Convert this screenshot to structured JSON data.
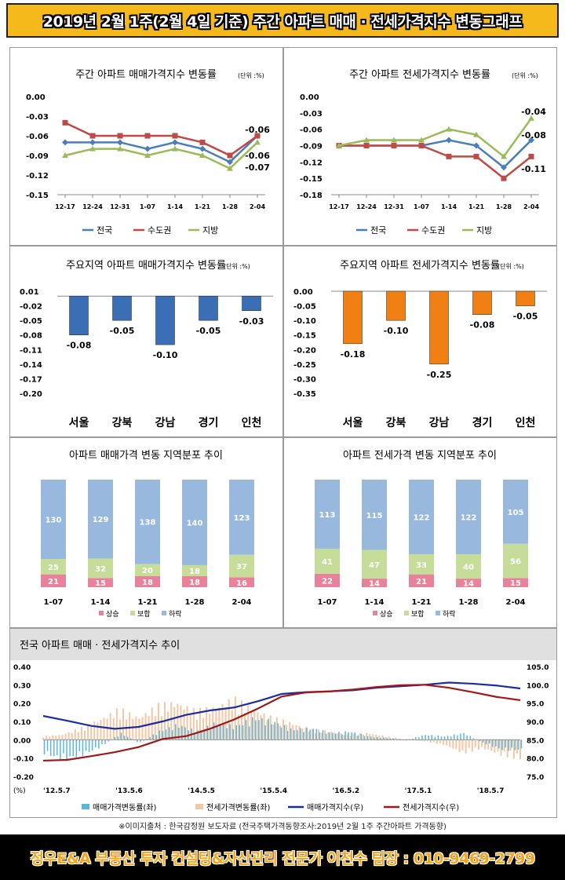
{
  "header": {
    "title": "2019년 2월 1주(2월 4일 기준) 주간 아파트 매매 · 전세가격지수 변동그래프"
  },
  "footer": {
    "source": "※이미지출처 : 한국감정원 보도자료 (전국주택가격동향조사:2019년 2월  1주 주간아파트 가격동향)",
    "banner": "정우E&A 부동산 투자 컨설팅&자산관리 전문가 이천수 팀장 : 010-9469-2799"
  },
  "colors": {
    "national": "#4a7ebb",
    "capital": "#be4b48",
    "local": "#9bbb59",
    "sale_bar": "#3a6fb5",
    "jeonse_bar": "#f07f14",
    "rise": "#e8819a",
    "flat": "#c6dd9a",
    "fall": "#98b9dd",
    "sale_index": "#1a2ea0",
    "jeonse_index": "#a01818"
  },
  "chart_data": [
    {
      "id": "weekly-sale",
      "type": "line",
      "title": "주간 아파트 매매가격지수 변동률",
      "unit": "(단위 :%)",
      "categories": [
        "12-17",
        "12-24",
        "12-31",
        "1-07",
        "1-14",
        "1-21",
        "1-28",
        "2-04"
      ],
      "ylim": [
        -0.15,
        0.0
      ],
      "yticks": [
        "0.00",
        "-0.03",
        "-0.06",
        "-0.09",
        "-0.12",
        "-0.15"
      ],
      "series": [
        {
          "name": "전국",
          "values": [
            -0.07,
            -0.07,
            -0.07,
            -0.08,
            -0.07,
            -0.08,
            -0.1,
            -0.06
          ]
        },
        {
          "name": "수도권",
          "values": [
            -0.04,
            -0.06,
            -0.06,
            -0.06,
            -0.06,
            -0.07,
            -0.09,
            -0.06
          ]
        },
        {
          "name": "지방",
          "values": [
            -0.09,
            -0.08,
            -0.08,
            -0.09,
            -0.08,
            -0.09,
            -0.11,
            -0.07
          ]
        }
      ],
      "data_labels": [
        "-0.06",
        "-0.06",
        "-0.07"
      ]
    },
    {
      "id": "weekly-jeonse",
      "type": "line",
      "title": "주간 아파트 전세가격지수 변동률",
      "unit": "(단위 :%)",
      "categories": [
        "12-17",
        "12-24",
        "12-31",
        "1-07",
        "1-14",
        "1-21",
        "1-28",
        "2-04"
      ],
      "ylim": [
        -0.18,
        0.0
      ],
      "yticks": [
        "0.00",
        "-0.03",
        "-0.06",
        "-0.09",
        "-0.12",
        "-0.15",
        "-0.18"
      ],
      "series": [
        {
          "name": "전국",
          "values": [
            -0.09,
            -0.09,
            -0.09,
            -0.09,
            -0.08,
            -0.09,
            -0.13,
            -0.08
          ]
        },
        {
          "name": "수도권",
          "values": [
            -0.09,
            -0.09,
            -0.09,
            -0.09,
            -0.11,
            -0.11,
            -0.15,
            -0.11
          ]
        },
        {
          "name": "지방",
          "values": [
            -0.09,
            -0.08,
            -0.08,
            -0.08,
            -0.06,
            -0.07,
            -0.11,
            -0.04
          ]
        }
      ],
      "data_labels": [
        "-0.04",
        "-0.08",
        "-0.11"
      ]
    },
    {
      "id": "region-sale",
      "type": "bar",
      "title": "주요지역 아파트 매매가격지수 변동률",
      "unit": "(단위 :%)",
      "categories": [
        "서울",
        "강북",
        "강남",
        "경기",
        "인천"
      ],
      "values": [
        -0.08,
        -0.05,
        -0.1,
        -0.05,
        -0.03
      ],
      "labels": [
        "-0.08",
        "-0.05",
        "-0.10",
        "-0.05",
        "-0.03"
      ],
      "ylim": [
        -0.2,
        0.01
      ],
      "yticks": [
        "0.01",
        "-0.02",
        "-0.05",
        "-0.08",
        "-0.11",
        "-0.14",
        "-0.17",
        "-0.20"
      ]
    },
    {
      "id": "region-jeonse",
      "type": "bar",
      "title": "주요지역 아파트 전세가격지수 변동률",
      "unit": "(단위 :%)",
      "categories": [
        "서울",
        "강북",
        "강남",
        "경기",
        "인천"
      ],
      "values": [
        -0.18,
        -0.1,
        -0.25,
        -0.08,
        -0.05
      ],
      "labels": [
        "-0.18",
        "-0.10",
        "-0.25",
        "-0.08",
        "-0.05"
      ],
      "ylim": [
        -0.35,
        0.0
      ],
      "yticks": [
        "0.00",
        "-0.05",
        "-0.10",
        "-0.15",
        "-0.20",
        "-0.25",
        "-0.30",
        "-0.35"
      ]
    },
    {
      "id": "dist-sale",
      "type": "bar",
      "stacked": true,
      "title": "아파트 매매가격 변동 지역분포 추이",
      "categories": [
        "1-07",
        "1-14",
        "1-21",
        "1-28",
        "2-04"
      ],
      "series": [
        {
          "name": "상승",
          "values": [
            21,
            15,
            18,
            18,
            16
          ]
        },
        {
          "name": "보합",
          "values": [
            25,
            32,
            20,
            18,
            37
          ]
        },
        {
          "name": "하락",
          "values": [
            130,
            129,
            138,
            140,
            123
          ]
        }
      ]
    },
    {
      "id": "dist-jeonse",
      "type": "bar",
      "stacked": true,
      "title": "아파트 전세가격 변동 지역분포 추이",
      "categories": [
        "1-07",
        "1-14",
        "1-21",
        "1-28",
        "2-04"
      ],
      "series": [
        {
          "name": "상승",
          "values": [
            22,
            14,
            21,
            14,
            15
          ]
        },
        {
          "name": "보합",
          "values": [
            41,
            47,
            33,
            40,
            56
          ]
        },
        {
          "name": "하락",
          "values": [
            113,
            115,
            122,
            122,
            105
          ]
        }
      ]
    },
    {
      "id": "trend",
      "type": "line",
      "title": "전국 아파트 매매 · 전세가격지수 추이",
      "unit_left": "(%)",
      "x_ticks": [
        "'12.5.7",
        "'13.5.6",
        "'14.5.5",
        "'15.5.4",
        "'16.5.2",
        "'17.5.1",
        "'18.5.7"
      ],
      "y_left": {
        "ticks": [
          "0.40",
          "0.30",
          "0.20",
          "0.10",
          "0.00",
          "-0.10",
          "-0.20"
        ],
        "range": [
          -0.2,
          0.4
        ]
      },
      "y_right": {
        "ticks": [
          "105.0",
          "100.0",
          "95.0",
          "90.0",
          "85.0",
          "80.0",
          "75.0"
        ],
        "range": [
          75.0,
          105.0
        ]
      },
      "legend": [
        "매매가격변동률(좌)",
        "전세가격변동률(좌)",
        "매매가격지수(우)",
        "전세가격지수(우)"
      ],
      "sale_index": [
        [
          0,
          91.5
        ],
        [
          0.05,
          90.2
        ],
        [
          0.1,
          88.8
        ],
        [
          0.15,
          88.0
        ],
        [
          0.2,
          88.5
        ],
        [
          0.25,
          90.0
        ],
        [
          0.3,
          91.8
        ],
        [
          0.35,
          93.0
        ],
        [
          0.4,
          93.8
        ],
        [
          0.45,
          95.5
        ],
        [
          0.5,
          97.5
        ],
        [
          0.55,
          98.0
        ],
        [
          0.6,
          98.2
        ],
        [
          0.65,
          98.5
        ],
        [
          0.7,
          99.2
        ],
        [
          0.75,
          99.6
        ],
        [
          0.8,
          100.0
        ],
        [
          0.85,
          100.6
        ],
        [
          0.9,
          100.3
        ],
        [
          0.95,
          99.8
        ],
        [
          1.0,
          99.0
        ]
      ],
      "jeonse_index": [
        [
          0,
          79.3
        ],
        [
          0.05,
          79.5
        ],
        [
          0.1,
          80.5
        ],
        [
          0.15,
          81.6
        ],
        [
          0.2,
          83.0
        ],
        [
          0.25,
          85.2
        ],
        [
          0.3,
          86.0
        ],
        [
          0.35,
          88.0
        ],
        [
          0.4,
          90.5
        ],
        [
          0.45,
          93.5
        ],
        [
          0.5,
          96.8
        ],
        [
          0.55,
          97.9
        ],
        [
          0.6,
          98.2
        ],
        [
          0.65,
          98.7
        ],
        [
          0.7,
          99.4
        ],
        [
          0.75,
          99.9
        ],
        [
          0.8,
          100.0
        ],
        [
          0.85,
          99.2
        ],
        [
          0.9,
          98.0
        ],
        [
          0.95,
          96.7
        ],
        [
          1.0,
          95.8
        ]
      ],
      "sale_rate": [
        [
          0,
          -0.08
        ],
        [
          0.04,
          -0.12
        ],
        [
          0.08,
          -0.09
        ],
        [
          0.12,
          -0.04
        ],
        [
          0.16,
          0.04
        ],
        [
          0.2,
          -0.02
        ],
        [
          0.24,
          0.05
        ],
        [
          0.28,
          0.09
        ],
        [
          0.32,
          0.05
        ],
        [
          0.36,
          0.1
        ],
        [
          0.4,
          0.08
        ],
        [
          0.44,
          0.13
        ],
        [
          0.48,
          0.11
        ],
        [
          0.52,
          0.06
        ],
        [
          0.56,
          0.07
        ],
        [
          0.6,
          0.04
        ],
        [
          0.64,
          0.05
        ],
        [
          0.68,
          0.02
        ],
        [
          0.72,
          0.01
        ],
        [
          0.76,
          0.0
        ],
        [
          0.8,
          0.03
        ],
        [
          0.84,
          0.02
        ],
        [
          0.88,
          0.04
        ],
        [
          0.92,
          -0.02
        ],
        [
          0.96,
          -0.06
        ],
        [
          1.0,
          -0.06
        ]
      ],
      "jeonse_rate": [
        [
          0,
          0.02
        ],
        [
          0.04,
          0.03
        ],
        [
          0.08,
          0.07
        ],
        [
          0.12,
          0.12
        ],
        [
          0.16,
          0.18
        ],
        [
          0.2,
          0.13
        ],
        [
          0.24,
          0.2
        ],
        [
          0.28,
          0.22
        ],
        [
          0.32,
          0.17
        ],
        [
          0.36,
          0.19
        ],
        [
          0.4,
          0.24
        ],
        [
          0.44,
          0.18
        ],
        [
          0.48,
          0.13
        ],
        [
          0.52,
          0.1
        ],
        [
          0.56,
          0.06
        ],
        [
          0.6,
          0.05
        ],
        [
          0.64,
          0.03
        ],
        [
          0.68,
          0.04
        ],
        [
          0.72,
          0.02
        ],
        [
          0.76,
          0.0
        ],
        [
          0.8,
          -0.01
        ],
        [
          0.84,
          -0.03
        ],
        [
          0.88,
          -0.08
        ],
        [
          0.92,
          -0.05
        ],
        [
          0.96,
          -0.09
        ],
        [
          1.0,
          -0.11
        ]
      ]
    }
  ]
}
